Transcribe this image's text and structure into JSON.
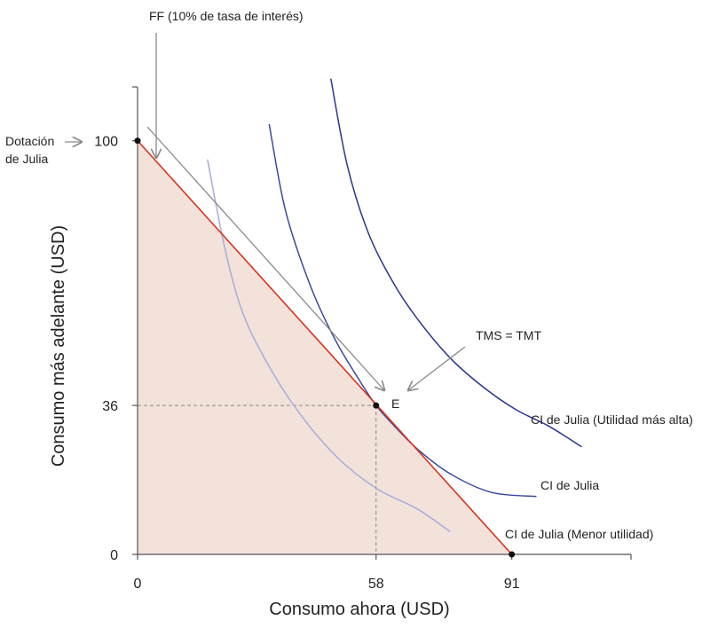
{
  "chart_data": {
    "type": "line",
    "title": "",
    "xlabel": "Consumo ahora (USD)",
    "ylabel": "Consumo más adelante (USD)",
    "xlim": [
      0,
      120
    ],
    "ylim": [
      0,
      113
    ],
    "xticks": [
      0,
      58,
      91
    ],
    "yticks": [
      0,
      36,
      100
    ],
    "budget_constraint": {
      "name": "FF (10% de tasa de interés)",
      "points": [
        [
          0,
          100
        ],
        [
          91,
          0
        ]
      ],
      "shaded_feasible_set": true,
      "color": "#d7321e"
    },
    "endowment": {
      "label": "Dotación de Julia",
      "point": [
        0,
        100
      ]
    },
    "equilibrium": {
      "label": "E",
      "point": [
        58,
        36
      ],
      "annotation": "TMS = TMT"
    },
    "series": [
      {
        "name": "CI de Julia (Menor utilidad)",
        "color": "#a6acdd",
        "points": [
          [
            17,
            95.5
          ],
          [
            21,
            75
          ],
          [
            25,
            60
          ],
          [
            30,
            49
          ],
          [
            38,
            36
          ],
          [
            48,
            24
          ],
          [
            58,
            16
          ],
          [
            68,
            11
          ],
          [
            76,
            5.5
          ]
        ]
      },
      {
        "name": "CI de Julia",
        "color": "#3a4aa0",
        "points": [
          [
            32,
            104
          ],
          [
            36,
            83
          ],
          [
            42,
            65
          ],
          [
            48,
            52
          ],
          [
            54,
            42
          ],
          [
            58,
            36
          ],
          [
            62,
            31.5
          ],
          [
            68,
            25.5
          ],
          [
            76,
            19.5
          ],
          [
            86,
            15
          ],
          [
            97,
            14
          ]
        ]
      },
      {
        "name": "CI de Julia (Utilidad más alta)",
        "color": "#2a3590",
        "points": [
          [
            47,
            115
          ],
          [
            51,
            94
          ],
          [
            56,
            78
          ],
          [
            62,
            66
          ],
          [
            68,
            57
          ],
          [
            76,
            47.5
          ],
          [
            84,
            40.5
          ],
          [
            92,
            35
          ],
          [
            100,
            31
          ],
          [
            108,
            26
          ]
        ]
      }
    ]
  },
  "labels": {
    "ff_label": "FF (10% de tasa de interés)",
    "endowment_line1": "Dotación",
    "endowment_line2": "de Julia",
    "tms_label": "TMS = TMT",
    "e_label": "E",
    "ci_high": "CI de Julia (Utilidad más alta)",
    "ci_mid": "CI de Julia",
    "ci_low": "CI de Julia (Menor utilidad)"
  },
  "colors": {
    "shade": "#f3e2d9",
    "axis": "#555555",
    "arrow": "#8a8a8a",
    "guide": "#888888"
  }
}
